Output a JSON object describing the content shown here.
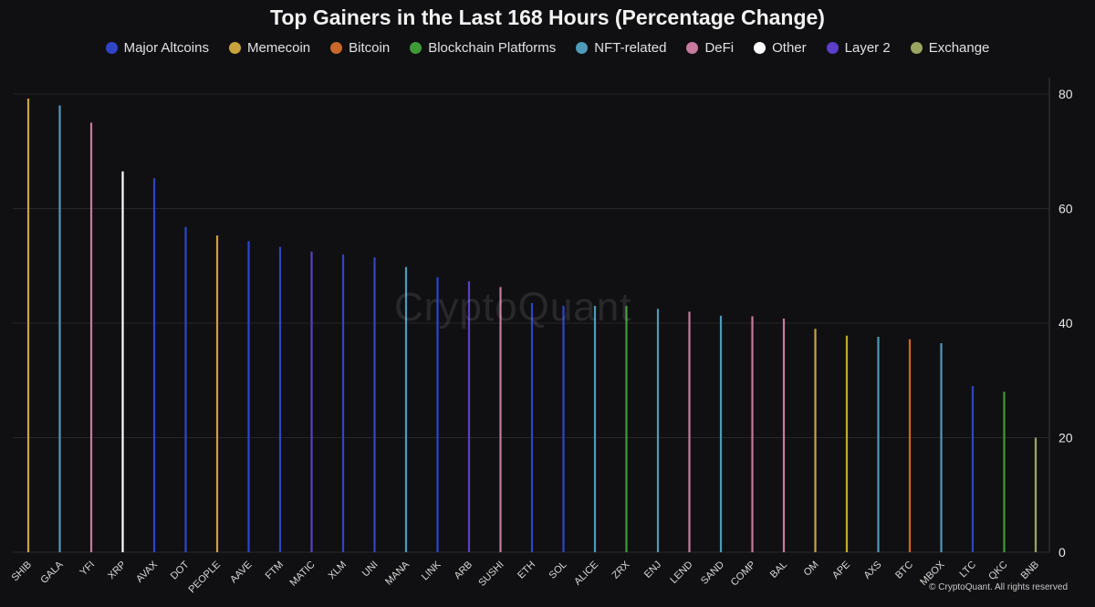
{
  "title": "Top Gainers in the Last 168 Hours (Percentage Change)",
  "watermark": "CryptoQuant",
  "copyright": "© CryptoQuant. All rights reserved",
  "legend": [
    {
      "label": "Major Altcoins",
      "color": "#2f45c8"
    },
    {
      "label": "Memecoin",
      "color": "#c9a43a"
    },
    {
      "label": "Bitcoin",
      "color": "#c8682a"
    },
    {
      "label": "Blockchain Platforms",
      "color": "#3f9a38"
    },
    {
      "label": "NFT-related",
      "color": "#4f9ab8"
    },
    {
      "label": "DeFi",
      "color": "#c77a9e"
    },
    {
      "label": "Other",
      "color": "#ffffff"
    },
    {
      "label": "Layer 2",
      "color": "#5a3fc8"
    },
    {
      "label": "Exchange",
      "color": "#9aa660"
    }
  ],
  "chart_data": {
    "type": "bar",
    "title": "Top Gainers in the Last 168 Hours (Percentage Change)",
    "xlabel": "",
    "ylabel": "",
    "ylim": [
      0,
      80
    ],
    "yticks": [
      0,
      20,
      40,
      60,
      80
    ],
    "grid": true,
    "legend_position": "top",
    "categories": [
      "SHIB",
      "GALA",
      "YFI",
      "XRP",
      "AVAX",
      "DOT",
      "PEOPLE",
      "AAVE",
      "FTM",
      "MATIC",
      "XLM",
      "UNI",
      "MANA",
      "LINK",
      "ARB",
      "SUSHI",
      "ETH",
      "SOL",
      "ALICE",
      "ZRX",
      "ENJ",
      "LEND",
      "SAND",
      "COMP",
      "BAL",
      "OM",
      "APE",
      "AXS",
      "BTC",
      "MBOX",
      "LTC",
      "QKC",
      "BNB"
    ],
    "values": [
      79.2,
      78.0,
      75.0,
      66.5,
      65.3,
      56.8,
      55.3,
      54.3,
      53.3,
      52.5,
      52.0,
      51.5,
      49.8,
      48.0,
      47.3,
      46.3,
      43.5,
      43.0,
      43.0,
      43.0,
      42.5,
      42.0,
      41.3,
      41.2,
      40.8,
      39.0,
      37.8,
      37.6,
      37.2,
      36.5,
      29.0,
      28.0,
      20.0
    ],
    "groups": [
      "Memecoin",
      "NFT-related",
      "DeFi",
      "Other",
      "Major Altcoins",
      "Major Altcoins",
      "Memecoin",
      "Major Altcoins",
      "Major Altcoins",
      "Layer 2",
      "Major Altcoins",
      "Major Altcoins",
      "NFT-related",
      "Major Altcoins",
      "Layer 2",
      "DeFi",
      "Major Altcoins",
      "Major Altcoins",
      "NFT-related",
      "Blockchain Platforms",
      "NFT-related",
      "DeFi",
      "NFT-related",
      "DeFi",
      "DeFi",
      "Memecoin",
      "Memecoin",
      "NFT-related",
      "Bitcoin",
      "NFT-related",
      "Major Altcoins",
      "Blockchain Platforms",
      "Exchange"
    ]
  }
}
